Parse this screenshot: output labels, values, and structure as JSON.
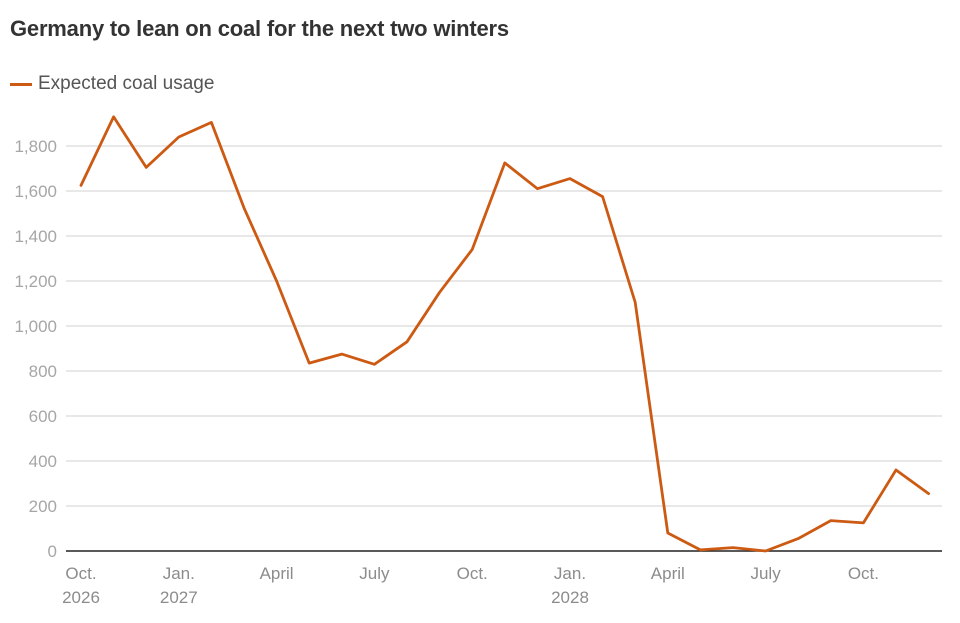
{
  "title": "Germany to lean on coal for the next two winters",
  "colors": {
    "series": "#cc5a13",
    "grid": "#d9d9d9",
    "axis": "#222222"
  },
  "chart_data": {
    "type": "line",
    "title": "Germany to lean on coal for the next two winters",
    "xlabel": "",
    "ylabel": "",
    "ylim": [
      0,
      1900
    ],
    "yticks": [
      0,
      200,
      400,
      600,
      800,
      1000,
      1200,
      1400,
      1600,
      1800
    ],
    "ytick_labels": [
      "0",
      "200",
      "400",
      "600",
      "800",
      "1,000",
      "1,200",
      "1,400",
      "1,600",
      "1,800"
    ],
    "xticks": [
      {
        "month_index": 0,
        "label": "Oct.",
        "year": "2026"
      },
      {
        "month_index": 3,
        "label": "Jan.",
        "year": "2027"
      },
      {
        "month_index": 6,
        "label": "April",
        "year": ""
      },
      {
        "month_index": 9,
        "label": "July",
        "year": ""
      },
      {
        "month_index": 12,
        "label": "Oct.",
        "year": ""
      },
      {
        "month_index": 15,
        "label": "Jan.",
        "year": "2028"
      },
      {
        "month_index": 18,
        "label": "April",
        "year": ""
      },
      {
        "month_index": 21,
        "label": "July",
        "year": ""
      },
      {
        "month_index": 24,
        "label": "Oct.",
        "year": ""
      }
    ],
    "grid": true,
    "legend_position": "top-left",
    "series": [
      {
        "name": "Expected coal usage",
        "x": [
          "2026-10",
          "2026-11",
          "2026-12",
          "2027-01",
          "2027-02",
          "2027-03",
          "2027-04",
          "2027-05",
          "2027-06",
          "2027-07",
          "2027-08",
          "2027-09",
          "2027-10",
          "2027-11",
          "2027-12",
          "2028-01",
          "2028-02",
          "2028-03",
          "2028-04",
          "2028-05",
          "2028-06",
          "2028-07",
          "2028-08",
          "2028-09",
          "2028-10",
          "2028-11",
          "2028-12"
        ],
        "values": [
          1625,
          1930,
          1705,
          1840,
          1905,
          1525,
          1200,
          835,
          875,
          830,
          930,
          1150,
          1340,
          1725,
          1610,
          1655,
          1575,
          1105,
          80,
          5,
          15,
          0,
          55,
          135,
          125,
          360,
          255
        ]
      }
    ]
  }
}
